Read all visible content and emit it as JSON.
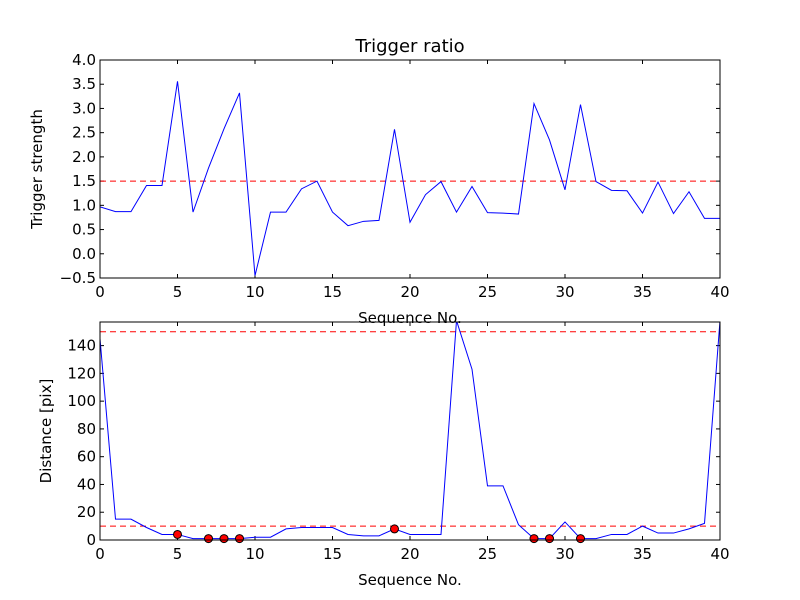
{
  "chart_data": [
    {
      "type": "line",
      "title": "Trigger ratio",
      "xlabel": "Sequence No.",
      "ylabel": "Trigger strength",
      "xlim": [
        0,
        40
      ],
      "ylim": [
        -0.5,
        4.0
      ],
      "xticks": [
        "0",
        "5",
        "10",
        "15",
        "20",
        "25",
        "30",
        "35",
        "40"
      ],
      "yticks": [
        "−0.5",
        "0.0",
        "0.5",
        "1.0",
        "1.5",
        "2.0",
        "2.5",
        "3.0",
        "3.5",
        "4.0"
      ],
      "grid": false,
      "x": [
        0,
        1,
        2,
        3,
        4,
        5,
        6,
        7,
        8,
        9,
        10,
        11,
        12,
        13,
        14,
        15,
        16,
        17,
        18,
        19,
        20,
        21,
        22,
        23,
        24,
        25,
        26,
        27,
        28,
        29,
        30,
        31,
        32,
        33,
        34,
        35,
        36,
        37,
        38,
        39,
        40
      ],
      "series": [
        {
          "values": [
            0.97,
            0.87,
            0.87,
            1.41,
            1.41,
            3.56,
            0.86,
            1.77,
            2.58,
            3.32,
            -0.45,
            0.86,
            0.86,
            1.34,
            1.5,
            0.86,
            0.58,
            0.67,
            0.69,
            2.57,
            0.65,
            1.22,
            1.49,
            0.86,
            1.39,
            0.85,
            0.84,
            0.82,
            3.1,
            2.35,
            1.32,
            3.08,
            1.49,
            1.31,
            1.3,
            0.84,
            1.48,
            0.83,
            1.28,
            0.73,
            0.73
          ],
          "color": "#0000ff"
        }
      ],
      "threshold_lines": [
        {
          "y": 1.5,
          "color": "#ff0000",
          "style": "dashed"
        }
      ]
    },
    {
      "type": "line",
      "title": "",
      "xlabel": "Sequence No.",
      "ylabel": "Distance [pix]",
      "xlim": [
        0,
        40
      ],
      "ylim": [
        0,
        157
      ],
      "xticks": [
        "0",
        "5",
        "10",
        "15",
        "20",
        "25",
        "30",
        "35",
        "40"
      ],
      "yticks": [
        "0",
        "20",
        "40",
        "60",
        "80",
        "100",
        "120",
        "140"
      ],
      "grid": false,
      "x": [
        0,
        1,
        2,
        3,
        4,
        5,
        6,
        7,
        8,
        9,
        10,
        11,
        12,
        13,
        14,
        15,
        16,
        17,
        18,
        19,
        20,
        21,
        22,
        23,
        24,
        25,
        26,
        27,
        28,
        29,
        30,
        31,
        32,
        33,
        34,
        35,
        36,
        37,
        38,
        39,
        40
      ],
      "series": [
        {
          "values": [
            145,
            15,
            15,
            9,
            4,
            4,
            1,
            1,
            1,
            1,
            2,
            2,
            8,
            9,
            9,
            9,
            4,
            3,
            3,
            8,
            4,
            4,
            4,
            158,
            123,
            39,
            39,
            11,
            1,
            1,
            13,
            1,
            1,
            4,
            4,
            10,
            5,
            5,
            8,
            12,
            158
          ],
          "color": "#0000ff"
        }
      ],
      "markers": {
        "color": "#ff0000",
        "x": [
          5,
          7,
          8,
          9,
          19,
          28,
          29,
          31
        ],
        "y": [
          4,
          1,
          1,
          1,
          8,
          1,
          1,
          1
        ]
      },
      "threshold_lines": [
        {
          "y": 150,
          "color": "#ff0000",
          "style": "dashed"
        },
        {
          "y": 10,
          "color": "#ff0000",
          "style": "dashed"
        }
      ]
    }
  ]
}
